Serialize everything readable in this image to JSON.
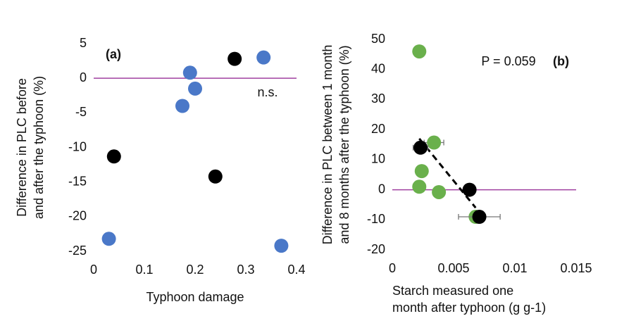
{
  "chart_data": [
    {
      "type": "scatter",
      "panel_label": "(a)",
      "annotation": "n.s.",
      "xlabel": [
        "Typhoon damage"
      ],
      "ylabel": [
        "Difference in PLC before",
        "and after the typhoon  (%)"
      ],
      "xlim": [
        0,
        0.4
      ],
      "xticks": [
        0,
        0.1,
        0.2,
        0.3,
        0.4
      ],
      "ylim": [
        -25,
        5
      ],
      "yticks": [
        -25,
        -20,
        -15,
        -10,
        -5,
        0,
        5
      ],
      "hline": {
        "value": 0,
        "color": "#a040a0"
      },
      "series": [
        {
          "color": "#4a78c8",
          "x": [
            0.03,
            0.175,
            0.19,
            0.2,
            0.335,
            0.37
          ],
          "values": [
            -23.2,
            -4,
            0.8,
            -1.5,
            3,
            -24.2
          ]
        },
        {
          "color": "#000000",
          "x": [
            0.04,
            0.24,
            0.278
          ],
          "values": [
            -11.3,
            -14.2,
            2.8
          ]
        }
      ]
    },
    {
      "type": "scatter",
      "panel_label": "(b)",
      "annotation": "P = 0.059",
      "xlabel": [
        "Starch measured one",
        "month after typhoon (g g-1)"
      ],
      "ylabel": [
        "Difference in PLC between 1 month",
        "and 8 months after the typhoon  (%)"
      ],
      "xlim": [
        0,
        0.015
      ],
      "xticks": [
        0,
        0.005,
        0.01,
        0.015
      ],
      "ylim": [
        -20,
        50
      ],
      "yticks": [
        -20,
        -10,
        0,
        10,
        20,
        30,
        40,
        50
      ],
      "hline": {
        "value": 0,
        "color": "#a040a0"
      },
      "trendline": {
        "x": [
          0.0022,
          0.0068
        ],
        "values": [
          17,
          -6
        ]
      },
      "series": [
        {
          "color": "#6ab04c",
          "x": [
            0.0022,
            0.0034,
            0.0024,
            0.0022,
            0.0038,
            0.0068
          ],
          "values": [
            46,
            15.7,
            6.2,
            1,
            -0.8,
            -9
          ],
          "xerr": [
            null,
            0.0008,
            null,
            0.0005,
            null,
            null
          ]
        },
        {
          "color": "#000000",
          "x": [
            0.0023,
            0.0063,
            0.0071
          ],
          "values": [
            14,
            0,
            -9
          ],
          "xerr": [
            0.0006,
            null,
            0.0017
          ]
        }
      ]
    }
  ]
}
